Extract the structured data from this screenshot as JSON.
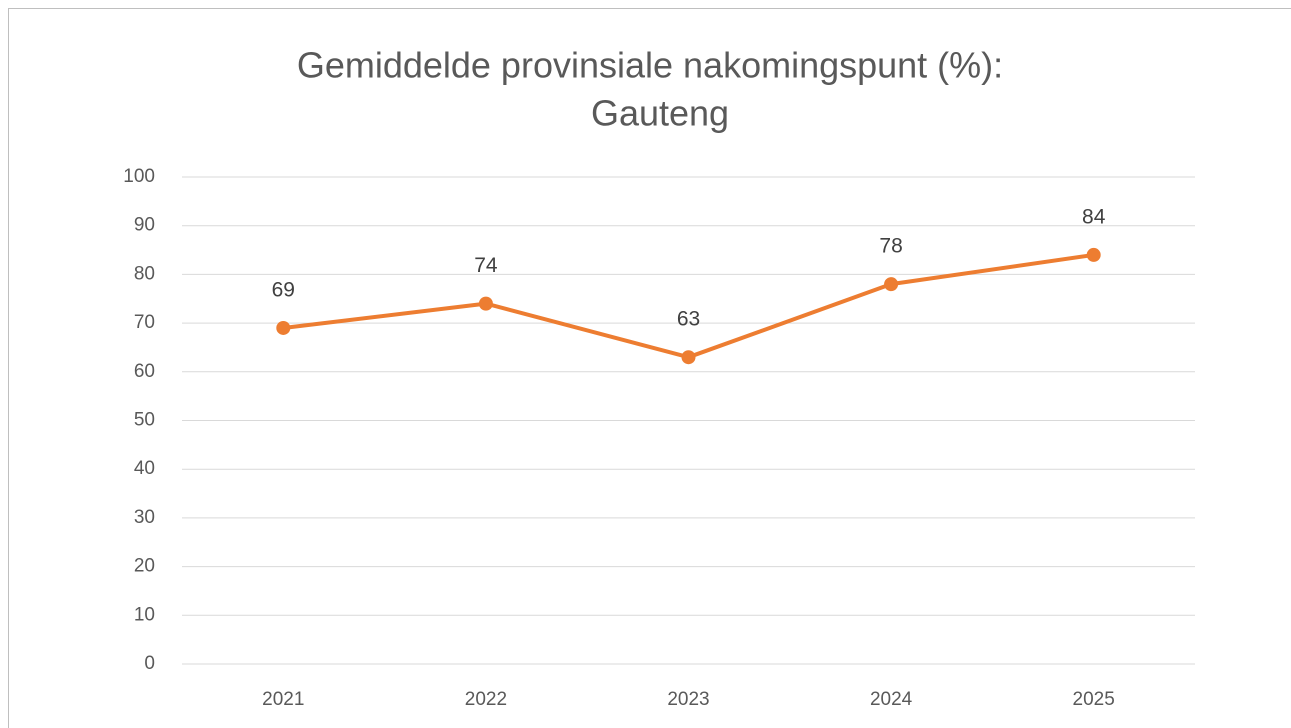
{
  "chart_data": {
    "type": "line",
    "title": [
      "Gemiddelde provinsiale nakomingspunt (%):",
      "Gauteng"
    ],
    "categories": [
      "2021",
      "2022",
      "2023",
      "2024",
      "2025"
    ],
    "series": [
      {
        "name": "Gauteng",
        "color": "#ed7d31",
        "values": [
          69,
          74,
          63,
          78,
          84
        ]
      }
    ],
    "ylim": [
      0,
      100
    ],
    "yticks": [
      0,
      10,
      20,
      30,
      40,
      50,
      60,
      70,
      80,
      90,
      100
    ],
    "grid": true,
    "data_labels": true
  }
}
